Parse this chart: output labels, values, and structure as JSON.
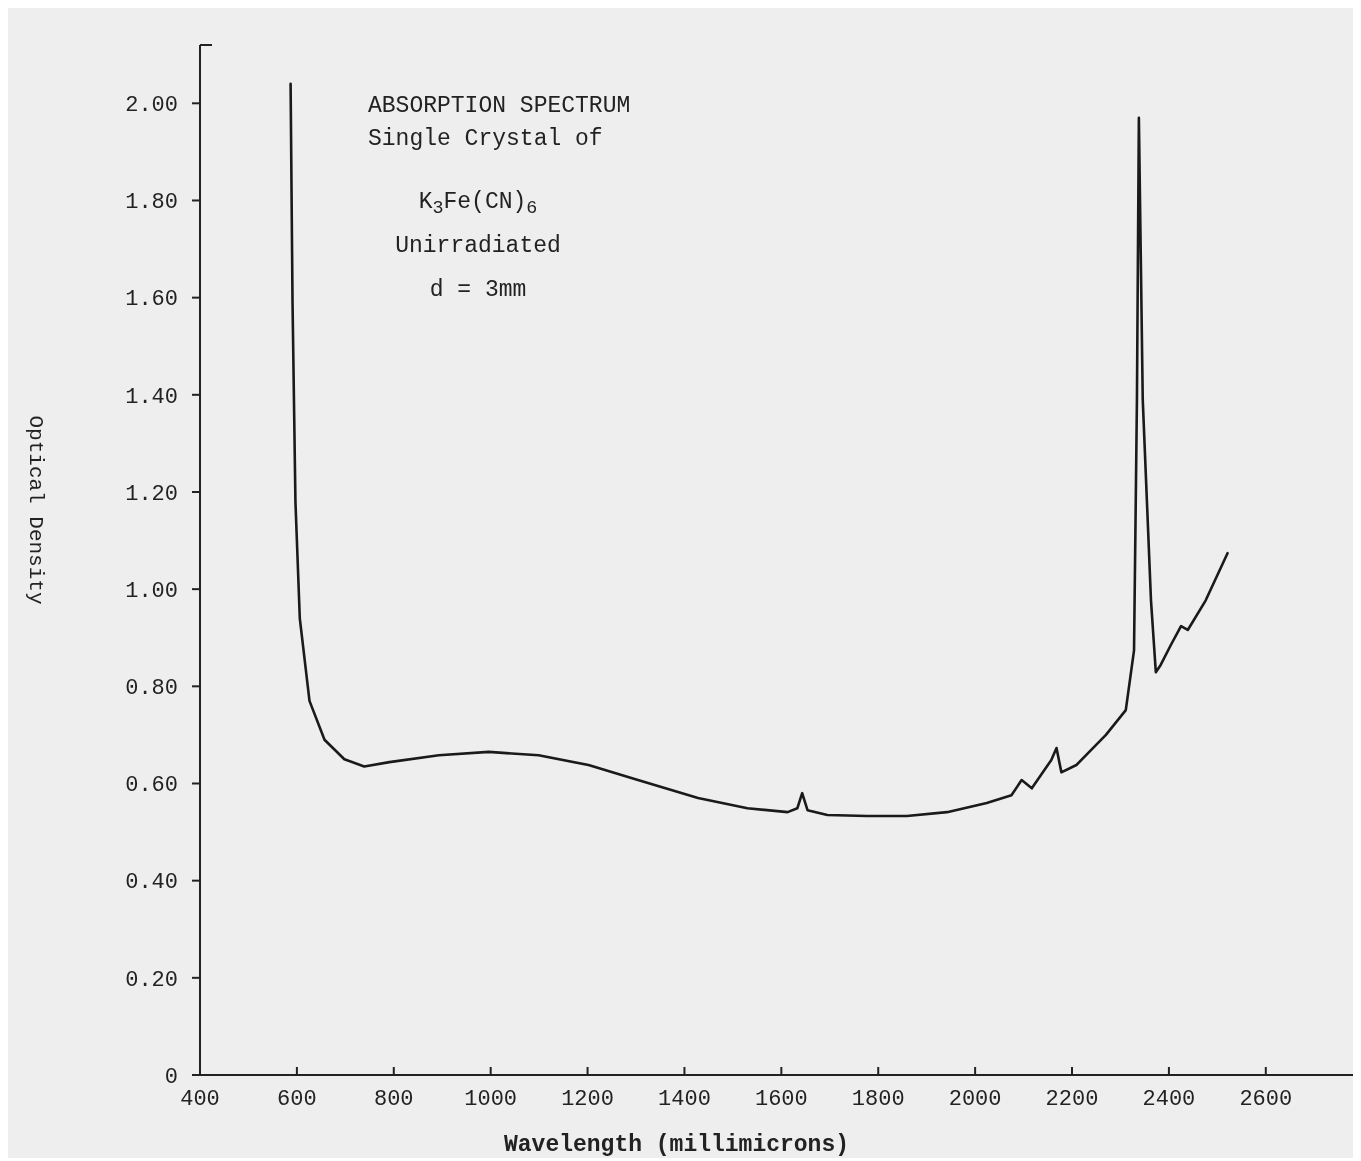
{
  "chart_data": {
    "type": "line",
    "title": "ABSORPTION SPECTRUM",
    "subtitle": "Single Crystal of",
    "annotations": [
      "K$_{3}$Fe(CN)$_{6}$",
      "Unirradiated",
      "d = 3mm"
    ],
    "xlabel": "Wavelength (millimicrons)",
    "ylabel": "Optical Density",
    "xlim": [
      400,
      2780
    ],
    "ylim": [
      0,
      2.12
    ],
    "xticks": [
      400,
      600,
      800,
      1000,
      1200,
      1400,
      1600,
      1800,
      2000,
      2200,
      2400,
      2600
    ],
    "yticks": [
      0,
      {
        "value": 0.2,
        "label": "0.20"
      },
      {
        "value": 0.4,
        "label": "0.40"
      },
      {
        "value": 0.6,
        "label": "0.60"
      },
      {
        "value": 0.8,
        "label": "0.80"
      },
      {
        "value": 1,
        "label": "1.00"
      },
      {
        "value": 1.2,
        "label": "1.20"
      },
      {
        "value": 1.4,
        "label": "1.40"
      },
      {
        "value": 1.6,
        "label": "1.60"
      },
      {
        "value": 1.8,
        "label": "1.80"
      },
      {
        "value": 2,
        "label": "2.00"
      }
    ],
    "grid": false,
    "marker": "none",
    "line_style": "solid",
    "series": [
      {
        "color": "#1a1a1a",
        "x": [
          587,
          591,
          597,
          606,
          626,
          657,
          698,
          739,
          791,
          893,
          996,
          1099,
          1202,
          1304,
          1428,
          1530,
          1613,
          1633,
          1643,
          1654,
          1695,
          1777,
          1859,
          1942,
          2024,
          2075,
          2096,
          2117,
          2157,
          2168,
          2178,
          2209,
          2270,
          2311,
          2328,
          2334,
          2338,
          2346,
          2363,
          2373,
          2383,
          2404,
          2425,
          2439,
          2476,
          2521
        ],
        "values": [
          2.04,
          1.59,
          1.18,
          0.94,
          0.77,
          0.69,
          0.65,
          0.635,
          0.644,
          0.658,
          0.665,
          0.658,
          0.638,
          0.607,
          0.57,
          0.549,
          0.541,
          0.549,
          0.58,
          0.545,
          0.535,
          0.533,
          0.533,
          0.541,
          0.56,
          0.576,
          0.607,
          0.59,
          0.648,
          0.673,
          0.623,
          0.638,
          0.7,
          0.751,
          0.874,
          1.39,
          1.97,
          1.39,
          0.977,
          0.829,
          0.844,
          0.885,
          0.924,
          0.916,
          0.977,
          1.074
        ]
      }
    ]
  }
}
